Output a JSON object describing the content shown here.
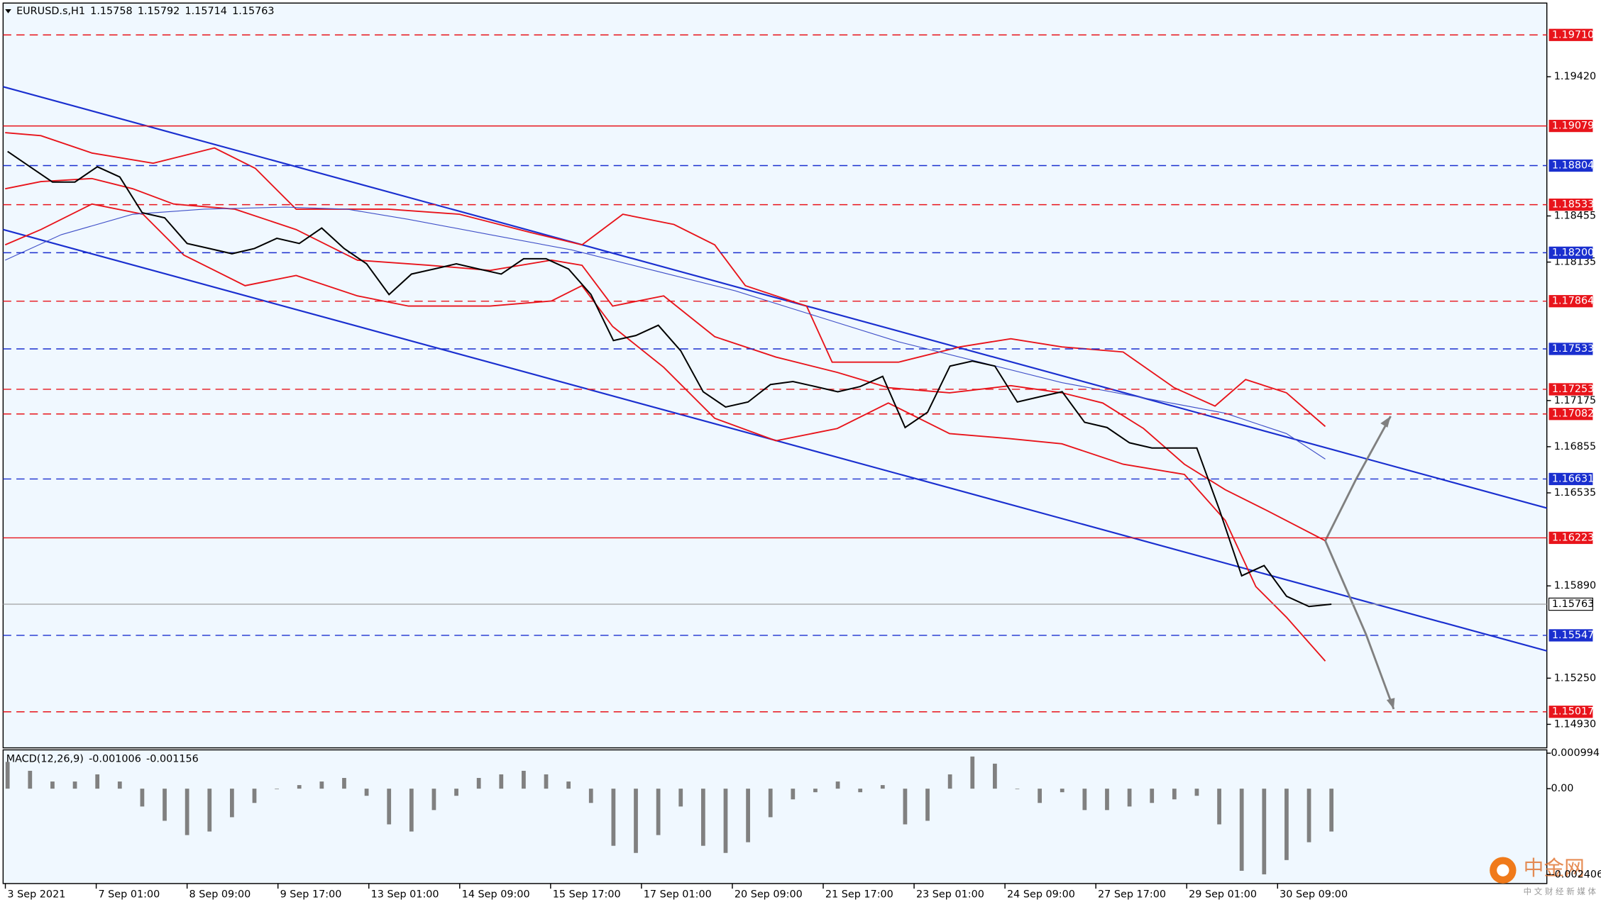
{
  "chart_data": [
    {
      "type": "line",
      "title": "EURUSD.s,H1",
      "header_values": [
        1.15758,
        1.15792,
        1.15714,
        1.15763
      ],
      "x": [
        0,
        1,
        2,
        3,
        4,
        5,
        6,
        7,
        8,
        9,
        10,
        11,
        12,
        13,
        14,
        15,
        16,
        17,
        18,
        19,
        20,
        21,
        22,
        23,
        24,
        25,
        26,
        27,
        28,
        29,
        30,
        31,
        32,
        33,
        34,
        35,
        36,
        37,
        38,
        39,
        40,
        41,
        42,
        43,
        44,
        45,
        46,
        47,
        48,
        49,
        50,
        51,
        52,
        53,
        54,
        55,
        56,
        57,
        58,
        59
      ],
      "values": [
        1.18902,
        1.18796,
        1.1869,
        1.1869,
        1.18796,
        1.18725,
        1.18477,
        1.18442,
        1.18264,
        1.18229,
        1.18193,
        1.18229,
        1.183,
        1.18264,
        1.18371,
        1.18229,
        1.18123,
        1.1791,
        1.18052,
        1.18087,
        1.18123,
        1.18087,
        1.18052,
        1.18158,
        1.18158,
        1.18087,
        1.1791,
        1.17591,
        1.17626,
        1.17697,
        1.1752,
        1.17236,
        1.1713,
        1.17165,
        1.17286,
        1.17307,
        1.17272,
        1.17236,
        1.17272,
        1.17343,
        1.16988,
        1.17094,
        1.17414,
        1.17449,
        1.17414,
        1.17165,
        1.17201,
        1.17236,
        1.17024,
        1.16988,
        1.16882,
        1.16846,
        1.16846,
        1.16846,
        1.16421,
        1.1596,
        1.16031,
        1.15818,
        1.15747,
        1.15763
      ],
      "color": "#000000",
      "xlim": [
        -0.2,
        68.6
      ],
      "xticks": [
        {
          "value": -0.1,
          "label": "3 Sep 2021"
        },
        {
          "value": 3.95,
          "label": "7 Sep 01:00"
        },
        {
          "value": 8,
          "label": "8 Sep 09:00"
        },
        {
          "value": 12.05,
          "label": "9 Sep 17:00"
        },
        {
          "value": 16.1,
          "label": "13 Sep 01:00"
        },
        {
          "value": 20.15,
          "label": "14 Sep 09:00"
        },
        {
          "value": 24.2,
          "label": "15 Sep 17:00"
        },
        {
          "value": 28.25,
          "label": "17 Sep 01:00"
        },
        {
          "value": 32.3,
          "label": "20 Sep 09:00"
        },
        {
          "value": 36.35,
          "label": "21 Sep 17:00"
        },
        {
          "value": 40.4,
          "label": "23 Sep 01:00"
        },
        {
          "value": 44.45,
          "label": "24 Sep 09:00"
        },
        {
          "value": 48.5,
          "label": "27 Sep 17:00"
        },
        {
          "value": 52.55,
          "label": "29 Sep 01:00"
        },
        {
          "value": 56.6,
          "label": "30 Sep 09:00"
        }
      ],
      "ylim": [
        1.14767,
        1.19931
      ],
      "yticks": [
        {
          "value": 1.1942,
          "label": "1.19420"
        },
        1.18455,
        1.18135,
        1.17175,
        1.16855,
        1.16535,
        {
          "value": 1.1589,
          "label": "1.15890"
        },
        {
          "value": 1.1525,
          "label": "1.15250"
        },
        {
          "value": 1.1493,
          "label": "1.14930"
        }
      ],
      "levels": [
        {
          "value": 1.1971,
          "label": "1.19710",
          "color": "#e8141b",
          "style": "dashed"
        },
        {
          "value": 1.19079,
          "color": "#e8141b",
          "style": "solid"
        },
        {
          "value": 1.18804,
          "color": "#1a2fcf",
          "style": "dashed"
        },
        {
          "value": 1.18533,
          "color": "#e8141b",
          "style": "dashed"
        },
        {
          "value": 1.182,
          "label": "1.18200",
          "color": "#1a2fcf",
          "style": "dashed"
        },
        {
          "value": 1.17864,
          "color": "#e8141b",
          "style": "dashed"
        },
        {
          "value": 1.17533,
          "color": "#1a2fcf",
          "style": "dashed"
        },
        {
          "value": 1.17253,
          "color": "#e8141b",
          "style": "dashed"
        },
        {
          "value": 1.17082,
          "color": "#e8141b",
          "style": "dashed"
        },
        {
          "value": 1.16631,
          "color": "#1a2fcf",
          "style": "dashed"
        },
        {
          "value": 1.16223,
          "color": "#e8141b",
          "style": "solid"
        },
        {
          "value": 1.15547,
          "color": "#1a2fcf",
          "style": "dashed"
        },
        {
          "value": 1.15017,
          "color": "#e8141b",
          "style": "dashed"
        }
      ],
      "current_price": 1.15763
    },
    {
      "type": "bar",
      "title": "MACD(12,26,9)",
      "header_values": [
        -0.001006,
        -0.001156
      ],
      "values": [
        0.00075,
        0.0005,
        0.0002,
        0.0002,
        0.0004,
        0.0002,
        -0.0005,
        -0.0009,
        -0.0013,
        -0.0012,
        -0.0008,
        -0.0004,
        0.0,
        0.0001,
        0.0002,
        0.0003,
        -0.0002,
        -0.001,
        -0.0012,
        -0.0006,
        -0.0002,
        0.0003,
        0.0004,
        0.0005,
        0.0004,
        0.0002,
        -0.0004,
        -0.0016,
        -0.0018,
        -0.0013,
        -0.0005,
        -0.0016,
        -0.0018,
        -0.0015,
        -0.0008,
        -0.0003,
        -0.0001,
        0.0002,
        -0.0001,
        0.0001,
        -0.001,
        -0.0009,
        0.0004,
        0.0009,
        0.0007,
        0.0,
        -0.0004,
        -0.0001,
        -0.0006,
        -0.0006,
        -0.0005,
        -0.0004,
        -0.0003,
        -0.0002,
        -0.001,
        -0.0023,
        -0.0024,
        -0.002,
        -0.0015,
        -0.0012
      ],
      "color": "#808080",
      "ylim": [
        -0.002657,
        0.001086
      ],
      "yticks": [
        0.000994,
        {
          "value": 0,
          "label": "0.00"
        },
        -0.002406
      ]
    }
  ],
  "watermark": {
    "name": "中金网",
    "tagline": "中 文 财 经 新 媒 体"
  }
}
